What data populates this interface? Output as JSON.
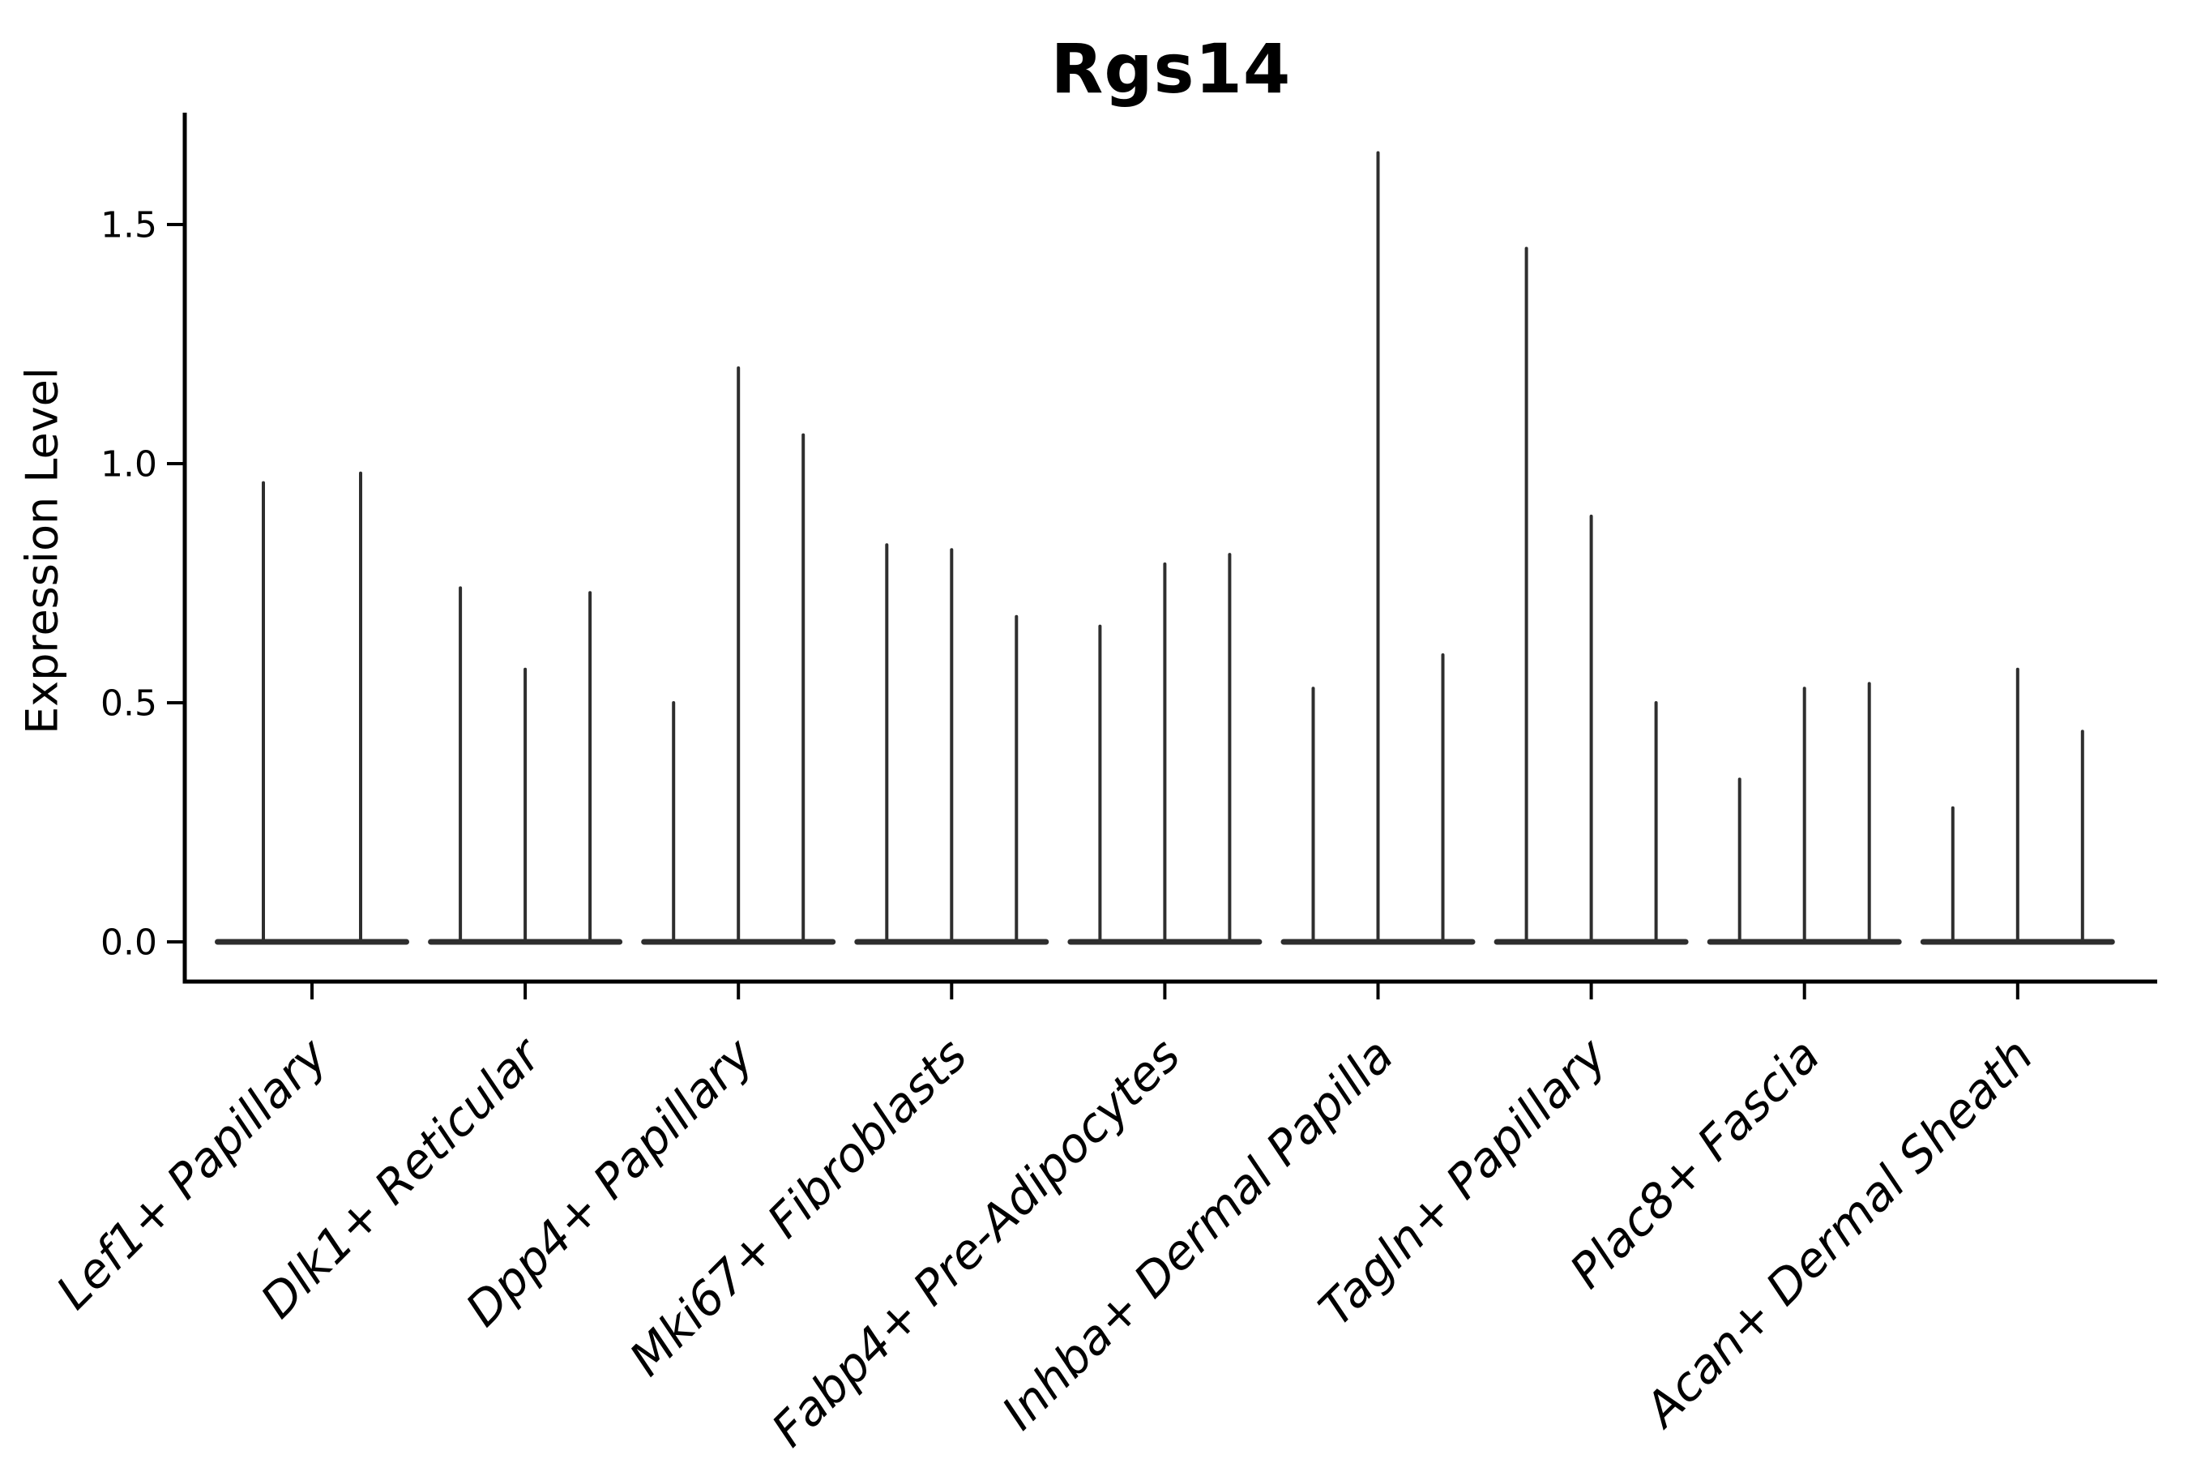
{
  "chart_data": {
    "type": "violin",
    "title": "Rgs14",
    "xlabel": "",
    "ylabel": "Expression Level",
    "grid": false,
    "legend": "none",
    "background_color": "#ffffff",
    "axes": {
      "ytick_labels": [
        "0.0",
        "0.5",
        "1.0",
        "1.5"
      ],
      "ytick_values": [
        0.0,
        0.5,
        1.0,
        1.5
      ],
      "ylim": [
        -0.083,
        1.734
      ],
      "spines_visible": [
        "left",
        "bottom"
      ],
      "xtick_label_style": "italic",
      "xtick_label_rotation_deg": 45
    },
    "categories": [
      "Lef1+ Papillary",
      "Dlk1+ Reticular",
      "Dpp4+ Papillary",
      "Mki67+ Fibroblasts",
      "Fabp4+ Pre-Adipocytes",
      "Inhba+ Dermal Papilla",
      "Tagln+ Papillary",
      "Plac8+ Fascia",
      "Acan+ Dermal Sheath"
    ],
    "groups": [
      {
        "category": "Lef1+ Papillary",
        "violin_maxima": [
          0.96,
          0.98
        ]
      },
      {
        "category": "Dlk1+ Reticular",
        "violin_maxima": [
          0.74,
          0.57,
          0.73
        ]
      },
      {
        "category": "Dpp4+ Papillary",
        "violin_maxima": [
          0.5,
          1.2,
          1.06
        ]
      },
      {
        "category": "Mki67+ Fibroblasts",
        "violin_maxima": [
          0.83,
          0.82,
          0.68
        ]
      },
      {
        "category": "Fabp4+ Pre-Adipocytes",
        "violin_maxima": [
          0.66,
          0.79,
          0.81
        ]
      },
      {
        "category": "Inhba+ Dermal Papilla",
        "violin_maxima": [
          0.53,
          1.65,
          0.6
        ]
      },
      {
        "category": "Tagln+ Papillary",
        "violin_maxima": [
          1.45,
          0.89,
          0.5
        ]
      },
      {
        "category": "Plac8+ Fascia",
        "violin_maxima": [
          0.34,
          0.53,
          0.54
        ]
      },
      {
        "category": "Acan+ Dermal Sheath",
        "violin_maxima": [
          0.28,
          0.57,
          0.44
        ]
      }
    ],
    "colors": {
      "violin": "#2e2e2e",
      "axis": "#000000",
      "text": "#000000"
    }
  }
}
